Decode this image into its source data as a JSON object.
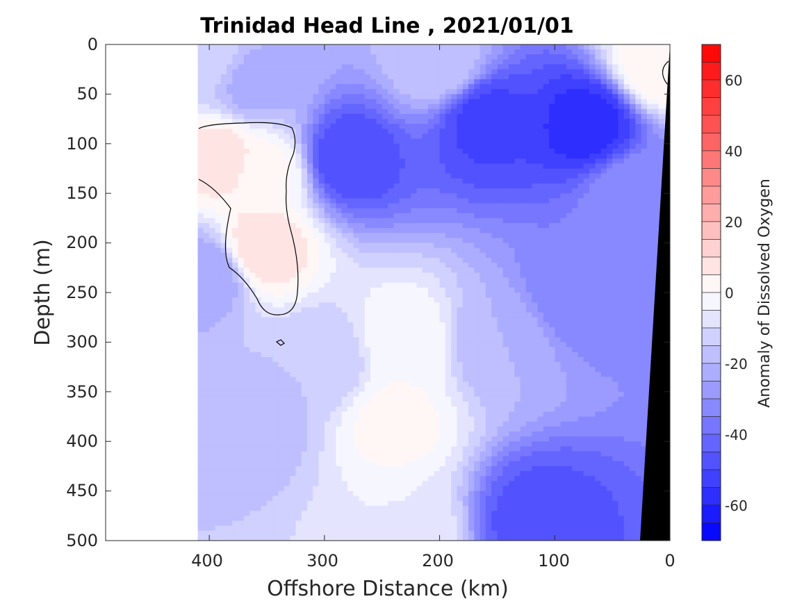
{
  "chart_data": {
    "type": "heatmap",
    "subtype": "filled-contour section",
    "title": "Trinidad Head Line , 2021/01/01",
    "xlabel": "Offshore Distance (km)",
    "ylabel": "Depth (m)",
    "xlim": [
      490,
      0
    ],
    "ylim": [
      0,
      500
    ],
    "x_reversed": true,
    "y_reversed": true,
    "xticks": [
      "400",
      "300",
      "200",
      "100",
      "0"
    ],
    "xtick_values": [
      400,
      300,
      200,
      100,
      0
    ],
    "yticks": [
      "0",
      "50",
      "100",
      "150",
      "200",
      "250",
      "300",
      "350",
      "400",
      "450",
      "500"
    ],
    "ytick_values": [
      0,
      50,
      100,
      150,
      200,
      250,
      300,
      350,
      400,
      450,
      500
    ],
    "data_x_extent": [
      410,
      0
    ],
    "colorbar": {
      "label": "Anomaly of Dissolved Oxygen",
      "range": [
        -70,
        70
      ],
      "level_step": 5,
      "ticks": [
        "60",
        "40",
        "20",
        "0",
        "-20",
        "-40",
        "-60"
      ],
      "tick_values": [
        60,
        40,
        20,
        0,
        -20,
        -40,
        -60
      ],
      "low_color": "#0000ff",
      "mid_color": "#ffffff",
      "high_color": "#ff0000"
    },
    "zero_contour_drawn": true,
    "bathymetry_color": "#000000",
    "features": [
      {
        "x": 390,
        "y": 115,
        "value": 8
      },
      {
        "x": 355,
        "y": 205,
        "value": 10
      },
      {
        "x": 350,
        "y": 130,
        "value": 2
      },
      {
        "x": 280,
        "y": 115,
        "value": -50
      },
      {
        "x": 160,
        "y": 75,
        "value": -52
      },
      {
        "x": 70,
        "y": 80,
        "value": -58
      },
      {
        "x": 115,
        "y": 480,
        "value": -48
      },
      {
        "x": 240,
        "y": 380,
        "value": 2
      },
      {
        "x": 230,
        "y": 490,
        "value": -5
      },
      {
        "x": 400,
        "y": 230,
        "value": -25
      },
      {
        "x": 405,
        "y": 10,
        "value": -12
      },
      {
        "x": 360,
        "y": 40,
        "value": -22
      },
      {
        "x": 200,
        "y": 20,
        "value": -15
      },
      {
        "x": 230,
        "y": 300,
        "value": 0
      },
      {
        "x": 80,
        "y": 250,
        "value": -35
      },
      {
        "x": 30,
        "y": 150,
        "value": -30
      },
      {
        "x": 300,
        "y": 320,
        "value": -15
      },
      {
        "x": 360,
        "y": 380,
        "value": -18
      },
      {
        "x": 150,
        "y": 300,
        "value": -20
      },
      {
        "x": 10,
        "y": 20,
        "value": 5
      }
    ]
  }
}
